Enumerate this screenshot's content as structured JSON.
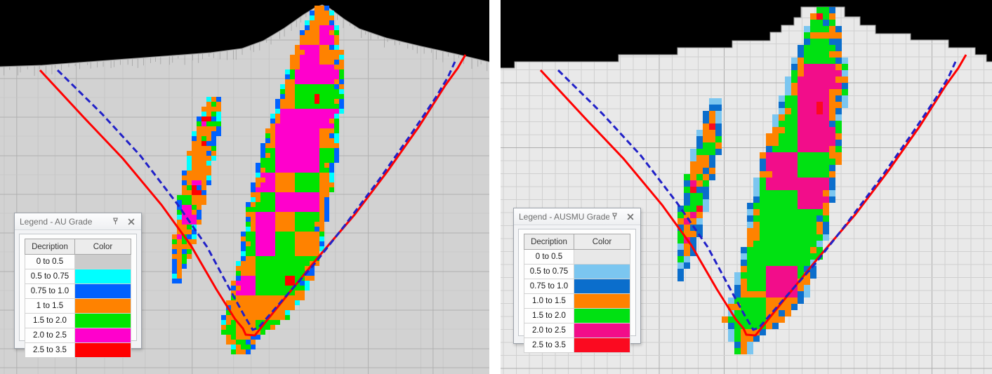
{
  "panels": [
    {
      "id": "au",
      "legend": {
        "title": "Legend - AU Grade",
        "columns": [
          "Decription",
          "Color"
        ],
        "rows": [
          {
            "label": "0 to 0.5",
            "color": "#cccccc"
          },
          {
            "label": "0.5 to 0.75",
            "color": "#00ffff"
          },
          {
            "label": "0.75 to 1.0",
            "color": "#0061ff"
          },
          {
            "label": "1 to 1.5",
            "color": "#ff8200"
          },
          {
            "label": "1.5 to 2.0",
            "color": "#00e400"
          },
          {
            "label": "2.0 to 2.5",
            "color": "#ff00cc"
          },
          {
            "label": "2.5 to 3.5",
            "color": "#ff0000"
          }
        ]
      },
      "scene": {
        "background": "#d2d2d2",
        "sky": "#000000",
        "grid_minor": "#c6c6c6",
        "grid_major": "#b0b0b0",
        "terrain_line": "#8f8f8f",
        "design_line_color": "#ff0000",
        "dashed_line_color": "#2121c8"
      }
    },
    {
      "id": "ausmu",
      "legend": {
        "title": "Legend - AUSMU Grade",
        "columns": [
          "Decription",
          "Color"
        ],
        "rows": [
          {
            "label": "0 to 0.5",
            "color": "#e8e8e8"
          },
          {
            "label": "0.5 to 0.75",
            "color": "#7bc6f0"
          },
          {
            "label": "0.75 to 1.0",
            "color": "#0b6ecc"
          },
          {
            "label": "1.0 to 1.5",
            "color": "#ff8200"
          },
          {
            "label": "1.5 to 2.0",
            "color": "#00e112"
          },
          {
            "label": "2.0 to 2.5",
            "color": "#f20d8a"
          },
          {
            "label": "2.5 to 3.5",
            "color": "#fb0a20"
          }
        ]
      },
      "scene": {
        "background": "#e9e9e9",
        "sky": "#000000",
        "grid_minor": "#d0d0d0",
        "grid_major": "#adadad",
        "terrain_line": "#9a9a9a",
        "design_line_color": "#ff0000",
        "dashed_line_color": "#2121c8"
      }
    }
  ]
}
